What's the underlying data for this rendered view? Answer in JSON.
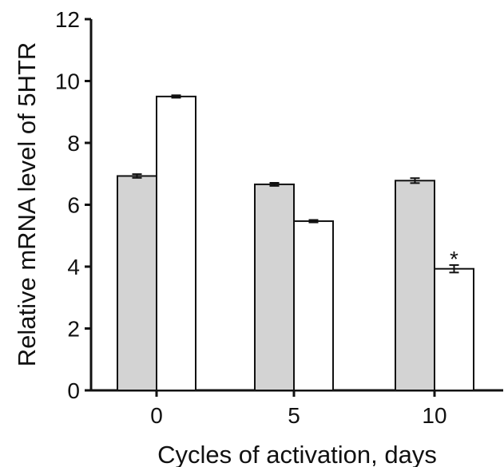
{
  "chart_data": {
    "type": "bar",
    "title": "",
    "xlabel": "Cycles of activation, days",
    "ylabel": "Relative mRNA level of 5HTR",
    "categories": [
      "0",
      "5",
      "10"
    ],
    "ylim": [
      0,
      12
    ],
    "yticks": [
      "0",
      "2",
      "4",
      "6",
      "8",
      "10",
      "12"
    ],
    "grid": false,
    "legend": "none",
    "series": [
      {
        "values": [
          6.93,
          6.66,
          6.78
        ],
        "errors": [
          0.06,
          0.05,
          0.08
        ],
        "color": "#d3d3d3"
      },
      {
        "values": [
          9.5,
          5.47,
          3.93
        ],
        "errors": [
          0.04,
          0.04,
          0.12
        ],
        "color": "#ffffff"
      }
    ],
    "annotations": [
      {
        "category": "10",
        "series": 1,
        "text": "*"
      }
    ]
  }
}
